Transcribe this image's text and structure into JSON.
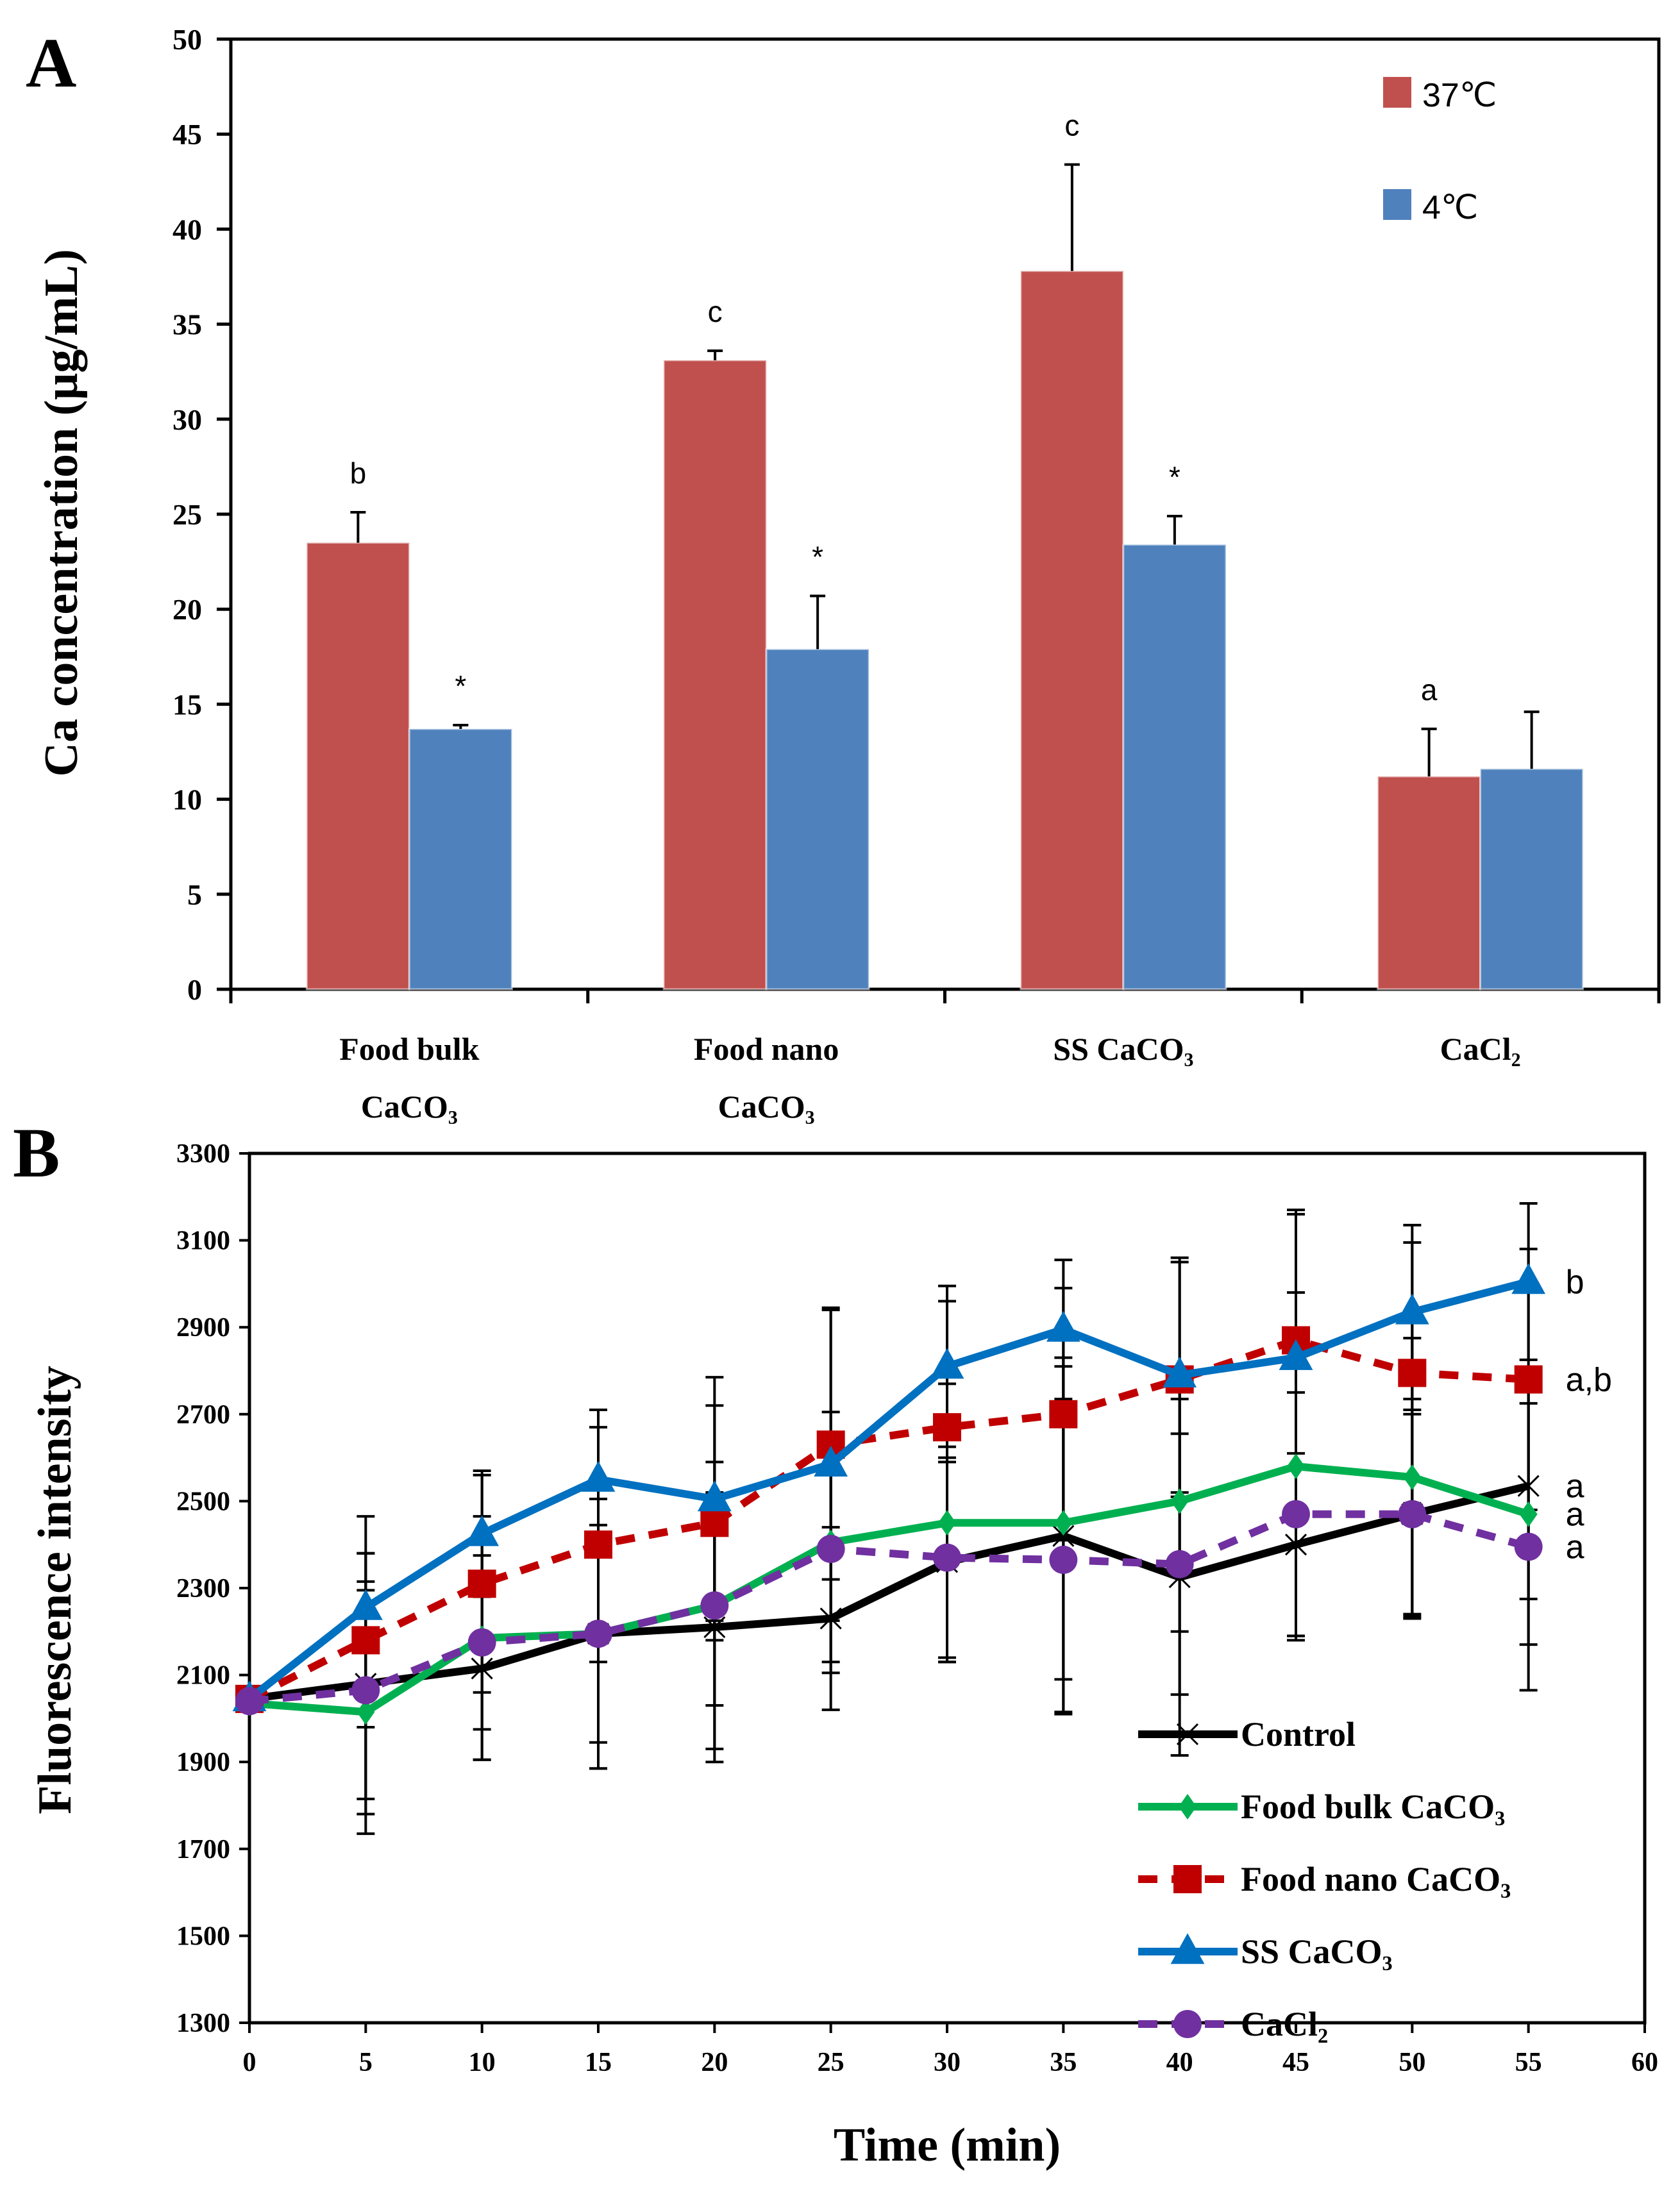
{
  "chart_data": [
    {
      "panel": "A",
      "type": "bar",
      "title": "",
      "xlabel": "",
      "ylabel": "Ca concentration (μg/mL)",
      "ylim": [
        0,
        50
      ],
      "yticks": [
        "0",
        "5",
        "10",
        "15",
        "20",
        "25",
        "30",
        "35",
        "40",
        "45",
        "50"
      ],
      "categories": [
        [
          "Food bulk",
          "CaCO₃"
        ],
        [
          "Food nano",
          "CaCO₃"
        ],
        [
          "SS CaCO₃"
        ],
        [
          "CaCl₂"
        ]
      ],
      "series": [
        {
          "name": "37℃",
          "color": "#C0504D",
          "values": [
            23.5,
            33.1,
            37.8,
            11.2
          ],
          "errors": [
            1.6,
            0.5,
            5.6,
            2.5
          ],
          "labels": [
            "b",
            "c",
            "c",
            "a"
          ]
        },
        {
          "name": "4℃",
          "color": "#4F81BD",
          "values": [
            13.7,
            17.9,
            23.4,
            11.6
          ],
          "errors": [
            0.2,
            2.8,
            1.5,
            3.0
          ],
          "labels": [
            "*",
            "*",
            "*",
            ""
          ]
        }
      ],
      "legend": "top-right",
      "grid": false
    },
    {
      "panel": "B",
      "type": "line",
      "title": "",
      "xlabel": "Time (min)",
      "ylabel": "Fluorescence intensity",
      "xlim": [
        0,
        60
      ],
      "ylim": [
        1300,
        3300
      ],
      "xticks": [
        "0",
        "5",
        "10",
        "15",
        "20",
        "25",
        "30",
        "35",
        "40",
        "45",
        "50",
        "55",
        "60"
      ],
      "yticks": [
        "1300",
        "1500",
        "1700",
        "1900",
        "2100",
        "2300",
        "2500",
        "2700",
        "2900",
        "3100",
        "3300"
      ],
      "x": [
        0,
        5,
        10,
        15,
        20,
        25,
        30,
        35,
        40,
        45,
        50,
        55
      ],
      "series": [
        {
          "name": "Control",
          "color": "#000000",
          "marker": "x",
          "dash": "solid",
          "values": [
            2045,
            2080,
            2115,
            2195,
            2210,
            2230,
            2360,
            2420,
            2325,
            2400,
            2470,
            2535
          ],
          "errors": [
            0,
            300,
            210,
            310,
            310,
            210,
            230,
            410,
            410,
            210,
            240,
            260
          ],
          "end_label": "a"
        },
        {
          "name": "Food bulk CaCO₃",
          "color": "#00B050",
          "marker": "diamond",
          "dash": "solid",
          "values": [
            2035,
            2015,
            2185,
            2195,
            2260,
            2405,
            2450,
            2450,
            2500,
            2580,
            2555,
            2470
          ],
          "errors": [
            0,
            280,
            280,
            310,
            330,
            300,
            320,
            360,
            300,
            400,
            320,
            300
          ],
          "end_label": "a"
        },
        {
          "name": "Food nano CaCO₃",
          "color": "#C00000",
          "marker": "square",
          "dash": "dashed",
          "values": [
            2045,
            2180,
            2310,
            2400,
            2450,
            2630,
            2670,
            2700,
            2780,
            2870,
            2795,
            2780
          ],
          "errors": [
            0,
            200,
            250,
            270,
            270,
            310,
            290,
            290,
            270,
            290,
            300,
            300
          ],
          "end_label": "a,b"
        },
        {
          "name": "SS CaCO₃",
          "color": "#0070C0",
          "marker": "triangle",
          "dash": "solid",
          "values": [
            2045,
            2255,
            2425,
            2550,
            2505,
            2585,
            2810,
            2895,
            2790,
            2830,
            2935,
            3005
          ],
          "errors": [
            0,
            210,
            145,
            160,
            280,
            360,
            185,
            160,
            270,
            340,
            200,
            180
          ],
          "end_label": "b"
        },
        {
          "name": "CaCl₂",
          "color": "#7030A0",
          "marker": "circle",
          "dash": "dashed",
          "values": [
            2040,
            2065,
            2175,
            2195,
            2260,
            2390,
            2370,
            2365,
            2355,
            2470,
            2470,
            2395
          ],
          "errors": [
            0,
            250,
            200,
            250,
            230,
            260,
            230,
            350,
            300,
            280,
            230,
            330
          ],
          "end_label": "a"
        }
      ],
      "legend": "bottom-right",
      "grid": false
    }
  ]
}
